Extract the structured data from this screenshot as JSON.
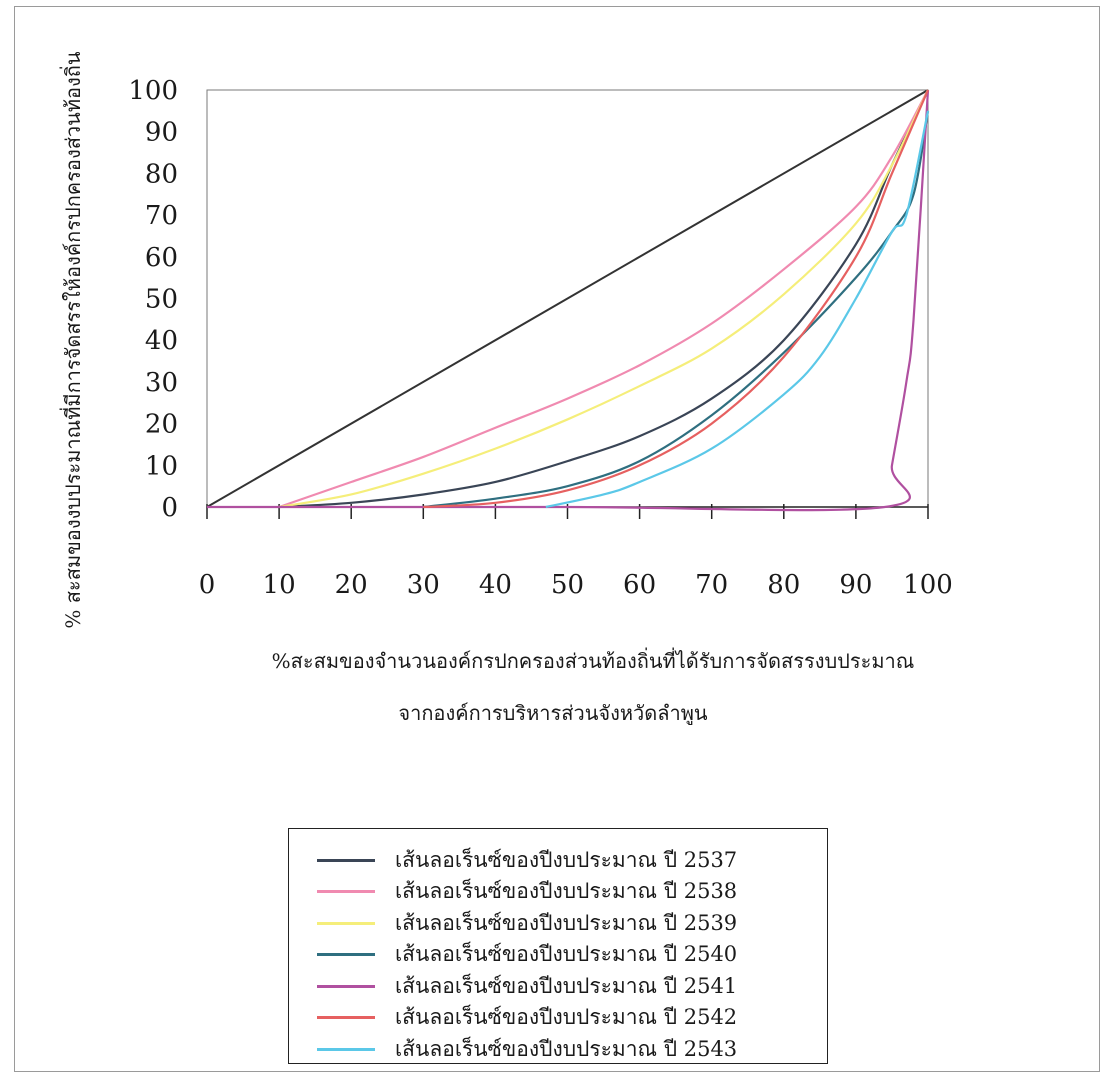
{
  "chart_data": {
    "type": "line",
    "title": "",
    "xlabel_line1": "%สะสมของจำนวนองค์กรปกครองส่วนท้องถิ่นที่ได้รับการจัดสรรงบประมาณ",
    "xlabel_line2": "จากองค์การบริหารส่วนจังหวัดลำพูน",
    "ylabel": "% สะสมของงบประมาณที่มีการจัดสรรให้องค์กรปกครองส่วนท้องถิ่น",
    "xlim": [
      0,
      100
    ],
    "ylim": [
      0,
      100
    ],
    "x_ticks": [
      0,
      10,
      20,
      30,
      40,
      50,
      60,
      70,
      80,
      90,
      100
    ],
    "y_ticks": [
      0,
      10,
      20,
      30,
      40,
      50,
      60,
      70,
      80,
      90,
      100
    ],
    "grid": false,
    "legend_position": "bottom-center",
    "equality_line": {
      "x": [
        0,
        100
      ],
      "y": [
        0,
        100
      ],
      "color": "#333333"
    },
    "series": [
      {
        "name": "เส้นลอเร็นซ์ของปีงบประมาณ ปี 2537",
        "color": "#3a4556",
        "x": [
          10,
          20,
          30,
          40,
          50,
          60,
          70,
          80,
          90,
          95,
          100
        ],
        "y": [
          0,
          1,
          3,
          6,
          11,
          17,
          26,
          40,
          63,
          82,
          100
        ]
      },
      {
        "name": "เส้นลอเร็นซ์ของปีงบประมาณ ปี 2538",
        "color": "#f08ab0",
        "x": [
          10,
          20,
          30,
          40,
          50,
          60,
          70,
          80,
          90,
          95,
          100
        ],
        "y": [
          0,
          6,
          12,
          19,
          26,
          34,
          44,
          57,
          72,
          84,
          100
        ]
      },
      {
        "name": "เส้นลอเร็นซ์ของปีงบประมาณ ปี 2539",
        "color": "#f5ee7a",
        "x": [
          10,
          20,
          30,
          40,
          50,
          60,
          70,
          80,
          90,
          95,
          100
        ],
        "y": [
          0,
          3,
          8,
          14,
          21,
          29,
          38,
          51,
          68,
          82,
          100
        ]
      },
      {
        "name": "เส้นลอเร็นซ์ของปีงบประมาณ ปี 2540",
        "color": "#2f6f80",
        "x": [
          30,
          40,
          50,
          60,
          70,
          80,
          90,
          95,
          98,
          100
        ],
        "y": [
          0,
          2,
          5,
          11,
          22,
          37,
          55,
          66,
          75,
          95
        ]
      },
      {
        "name": "เส้นลอเร็นซ์ของปีงบประมาณ ปี 2541",
        "color": "#b050a0",
        "x": [
          0,
          50,
          94,
          95,
          97,
          98,
          100
        ],
        "y": [
          0,
          0,
          0,
          10,
          30,
          45,
          100
        ]
      },
      {
        "name": "เส้นลอเร็นซ์ของปีงบประมาณ ปี 2542",
        "color": "#e66060",
        "x": [
          30,
          40,
          50,
          60,
          70,
          80,
          90,
          95,
          100
        ],
        "y": [
          0,
          1,
          4,
          10,
          20,
          36,
          60,
          80,
          100
        ]
      },
      {
        "name": "เส้นลอเร็นซ์ของปีงบประมาณ ปี 2543",
        "color": "#5bc8e8",
        "x": [
          47,
          55,
          60,
          70,
          80,
          85,
          90,
          95,
          97,
          100
        ],
        "y": [
          0,
          3,
          6,
          14,
          27,
          36,
          50,
          66,
          70,
          95
        ]
      }
    ]
  }
}
